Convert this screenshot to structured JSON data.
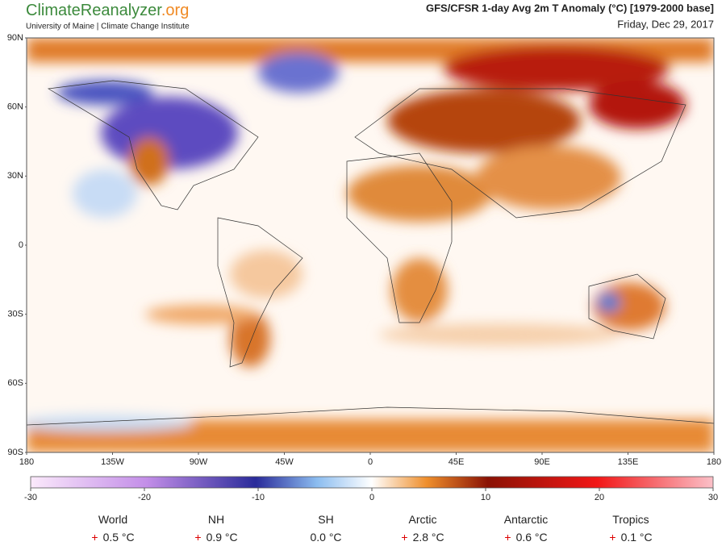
{
  "header": {
    "logo_parts": [
      "Climate",
      "Reanalyzer",
      ".org"
    ],
    "subtitle": "University of Maine | Climate Change Institute",
    "title": "GFS/CFSR 1-day Avg 2m T Anomaly (°C) [1979-2000 base]",
    "date": "Friday, Dec 29, 2017"
  },
  "map": {
    "lon_range": [
      -180,
      180
    ],
    "lat_range": [
      -90,
      90
    ],
    "lat_ticks": [
      {
        "value": 90,
        "label": "90N"
      },
      {
        "value": 60,
        "label": "60N"
      },
      {
        "value": 30,
        "label": "30N"
      },
      0,
      {
        "value": -30,
        "label": "30S"
      },
      {
        "value": -60,
        "label": "60S"
      },
      {
        "value": -90,
        "label": "90S"
      }
    ],
    "lon_ticks": [
      180,
      {
        "value": -135,
        "label": "135W"
      },
      {
        "value": -90,
        "label": "90W"
      },
      {
        "value": -45,
        "label": "45W"
      },
      0,
      {
        "value": 45,
        "label": "45E"
      },
      {
        "value": 90,
        "label": "90E"
      },
      {
        "value": 135,
        "label": "135E"
      },
      {
        "value": 180,
        "label": "180"
      }
    ]
  },
  "colorbar": {
    "range": [
      -30,
      30
    ],
    "ticks": [
      -30,
      -20,
      -10,
      0,
      10,
      20,
      30
    ]
  },
  "stats": [
    {
      "name": "World",
      "sign": "+",
      "value": "0.5 °C"
    },
    {
      "name": "NH",
      "sign": "+",
      "value": "0.9 °C"
    },
    {
      "name": "SH",
      "sign": "",
      "value": "0.0 °C"
    },
    {
      "name": "Arctic",
      "sign": "+",
      "value": "2.8 °C"
    },
    {
      "name": "Antarctic",
      "sign": "+",
      "value": "0.6 °C"
    },
    {
      "name": "Tropics",
      "sign": "+",
      "value": "0.1 °C"
    }
  ]
}
